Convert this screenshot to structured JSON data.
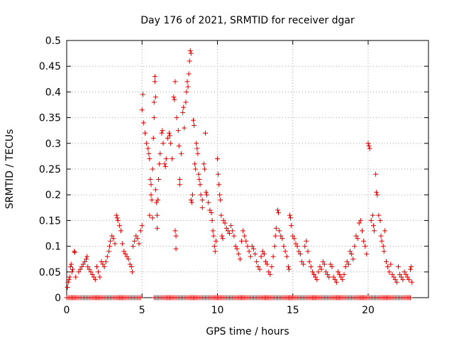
{
  "chart_data": {
    "type": "scatter",
    "title": "Day 176 of 2021, SRMTID for receiver dgar",
    "xlabel": "GPS time / hours",
    "ylabel": "SRMTID / TECUs",
    "xlim": [
      0,
      24
    ],
    "ylim": [
      0,
      0.5
    ],
    "xticks": [
      0,
      5,
      10,
      15,
      20
    ],
    "yticks": [
      0,
      0.05,
      0.1,
      0.15,
      0.2,
      0.25,
      0.3,
      0.35,
      0.4,
      0.45,
      0.5
    ],
    "xtick_labels": [
      "0",
      "5",
      "10",
      "15",
      "20"
    ],
    "ytick_labels": [
      "0",
      "0.05",
      "0.1",
      "0.15",
      "0.2",
      "0.25",
      "0.3",
      "0.35",
      "0.4",
      "0.45",
      "0.5"
    ],
    "grid": true,
    "marker": "+",
    "color": "#dd0000",
    "series": [
      {
        "name": "SRMTID",
        "points": [
          [
            0.0,
            0.0
          ],
          [
            0.05,
            0.02
          ],
          [
            0.1,
            0.03
          ],
          [
            0.15,
            0.035
          ],
          [
            0.2,
            0.04
          ],
          [
            0.25,
            0.06
          ],
          [
            0.3,
            0.065
          ],
          [
            0.35,
            0.05
          ],
          [
            0.4,
            0.055
          ],
          [
            0.5,
            0.09
          ],
          [
            0.55,
            0.088
          ],
          [
            0.6,
            0.04
          ],
          [
            0.8,
            0.05
          ],
          [
            0.9,
            0.055
          ],
          [
            1.0,
            0.06
          ],
          [
            1.1,
            0.065
          ],
          [
            1.2,
            0.07
          ],
          [
            1.3,
            0.075
          ],
          [
            1.35,
            0.08
          ],
          [
            1.4,
            0.06
          ],
          [
            1.5,
            0.055
          ],
          [
            1.6,
            0.05
          ],
          [
            1.7,
            0.045
          ],
          [
            1.8,
            0.04
          ],
          [
            1.9,
            0.035
          ],
          [
            2.0,
            0.06
          ],
          [
            2.1,
            0.05
          ],
          [
            2.2,
            0.04
          ],
          [
            2.3,
            0.07
          ],
          [
            2.4,
            0.065
          ],
          [
            2.5,
            0.06
          ],
          [
            2.6,
            0.07
          ],
          [
            2.7,
            0.08
          ],
          [
            2.8,
            0.09
          ],
          [
            2.85,
            0.1
          ],
          [
            2.9,
            0.11
          ],
          [
            3.0,
            0.12
          ],
          [
            3.1,
            0.115
          ],
          [
            3.2,
            0.105
          ],
          [
            3.3,
            0.16
          ],
          [
            3.35,
            0.155
          ],
          [
            3.4,
            0.15
          ],
          [
            3.5,
            0.14
          ],
          [
            3.6,
            0.13
          ],
          [
            3.7,
            0.105
          ],
          [
            3.8,
            0.09
          ],
          [
            3.9,
            0.085
          ],
          [
            4.0,
            0.08
          ],
          [
            4.1,
            0.075
          ],
          [
            4.2,
            0.065
          ],
          [
            4.3,
            0.06
          ],
          [
            4.35,
            0.05
          ],
          [
            4.4,
            0.1
          ],
          [
            4.5,
            0.11
          ],
          [
            4.6,
            0.12
          ],
          [
            4.7,
            0.115
          ],
          [
            4.8,
            0.105
          ],
          [
            4.9,
            0.13
          ],
          [
            5.0,
            0.14
          ],
          [
            5.0,
            0.365
          ],
          [
            5.05,
            0.395
          ],
          [
            5.1,
            0.34
          ],
          [
            5.2,
            0.32
          ],
          [
            5.3,
            0.3
          ],
          [
            5.4,
            0.29
          ],
          [
            5.45,
            0.28
          ],
          [
            5.5,
            0.27
          ],
          [
            5.5,
            0.16
          ],
          [
            5.55,
            0.23
          ],
          [
            5.6,
            0.22
          ],
          [
            5.6,
            0.2
          ],
          [
            5.65,
            0.19
          ],
          [
            5.7,
            0.155
          ],
          [
            5.7,
            0.25
          ],
          [
            5.75,
            0.31
          ],
          [
            5.8,
            0.35
          ],
          [
            5.8,
            0.38
          ],
          [
            5.85,
            0.43
          ],
          [
            5.85,
            0.42
          ],
          [
            5.9,
            0.39
          ],
          [
            5.9,
            0.21
          ],
          [
            5.95,
            0.185
          ],
          [
            6.0,
            0.16
          ],
          [
            6.0,
            0.135
          ],
          [
            6.05,
            0.19
          ],
          [
            6.1,
            0.23
          ],
          [
            6.15,
            0.26
          ],
          [
            6.2,
            0.28
          ],
          [
            6.3,
            0.32
          ],
          [
            6.35,
            0.325
          ],
          [
            6.4,
            0.3
          ],
          [
            6.5,
            0.26
          ],
          [
            6.55,
            0.255
          ],
          [
            6.6,
            0.27
          ],
          [
            6.7,
            0.31
          ],
          [
            6.8,
            0.32
          ],
          [
            6.85,
            0.315
          ],
          [
            6.9,
            0.3
          ],
          [
            7.0,
            0.27
          ],
          [
            7.1,
            0.39
          ],
          [
            7.15,
            0.385
          ],
          [
            7.2,
            0.42
          ],
          [
            7.2,
            0.13
          ],
          [
            7.25,
            0.12
          ],
          [
            7.25,
            0.095
          ],
          [
            7.3,
            0.35
          ],
          [
            7.4,
            0.325
          ],
          [
            7.45,
            0.295
          ],
          [
            7.5,
            0.23
          ],
          [
            7.5,
            0.22
          ],
          [
            7.6,
            0.28
          ],
          [
            7.7,
            0.36
          ],
          [
            7.75,
            0.37
          ],
          [
            7.8,
            0.33
          ],
          [
            7.9,
            0.38
          ],
          [
            7.95,
            0.4
          ],
          [
            8.0,
            0.42
          ],
          [
            8.05,
            0.41
          ],
          [
            8.1,
            0.435
          ],
          [
            8.15,
            0.46
          ],
          [
            8.2,
            0.48
          ],
          [
            8.25,
            0.475
          ],
          [
            8.25,
            0.19
          ],
          [
            8.3,
            0.185
          ],
          [
            8.35,
            0.2
          ],
          [
            8.4,
            0.345
          ],
          [
            8.45,
            0.335
          ],
          [
            8.5,
            0.26
          ],
          [
            8.55,
            0.25
          ],
          [
            8.6,
            0.3
          ],
          [
            8.65,
            0.29
          ],
          [
            8.7,
            0.28
          ],
          [
            8.75,
            0.24
          ],
          [
            8.8,
            0.23
          ],
          [
            8.85,
            0.22
          ],
          [
            8.9,
            0.2
          ],
          [
            9.0,
            0.19
          ],
          [
            9.0,
            0.175
          ],
          [
            9.1,
            0.26
          ],
          [
            9.15,
            0.25
          ],
          [
            9.2,
            0.32
          ],
          [
            9.25,
            0.205
          ],
          [
            9.3,
            0.2
          ],
          [
            9.4,
            0.185
          ],
          [
            9.5,
            0.17
          ],
          [
            9.6,
            0.165
          ],
          [
            9.65,
            0.15
          ],
          [
            9.7,
            0.13
          ],
          [
            9.75,
            0.12
          ],
          [
            9.8,
            0.1
          ],
          [
            9.85,
            0.09
          ],
          [
            9.9,
            0.11
          ],
          [
            10.0,
            0.27
          ],
          [
            10.05,
            0.24
          ],
          [
            10.1,
            0.22
          ],
          [
            10.15,
            0.2
          ],
          [
            10.2,
            0.19
          ],
          [
            10.25,
            0.16
          ],
          [
            10.3,
            0.12
          ],
          [
            10.35,
            0.115
          ],
          [
            10.4,
            0.15
          ],
          [
            10.5,
            0.145
          ],
          [
            10.6,
            0.135
          ],
          [
            10.7,
            0.13
          ],
          [
            10.8,
            0.125
          ],
          [
            10.9,
            0.14
          ],
          [
            11.0,
            0.13
          ],
          [
            11.1,
            0.12
          ],
          [
            11.2,
            0.1
          ],
          [
            11.3,
            0.095
          ],
          [
            11.4,
            0.085
          ],
          [
            11.5,
            0.075
          ],
          [
            11.6,
            0.11
          ],
          [
            11.7,
            0.13
          ],
          [
            11.8,
            0.12
          ],
          [
            11.9,
            0.11
          ],
          [
            12.0,
            0.1
          ],
          [
            12.1,
            0.09
          ],
          [
            12.2,
            0.08
          ],
          [
            12.3,
            0.1
          ],
          [
            12.4,
            0.095
          ],
          [
            12.5,
            0.085
          ],
          [
            12.6,
            0.07
          ],
          [
            12.7,
            0.06
          ],
          [
            12.8,
            0.055
          ],
          [
            12.9,
            0.08
          ],
          [
            13.0,
            0.09
          ],
          [
            13.1,
            0.085
          ],
          [
            13.2,
            0.07
          ],
          [
            13.3,
            0.065
          ],
          [
            13.4,
            0.05
          ],
          [
            13.5,
            0.045
          ],
          [
            13.6,
            0.06
          ],
          [
            13.7,
            0.08
          ],
          [
            13.8,
            0.1
          ],
          [
            13.85,
            0.12
          ],
          [
            13.9,
            0.135
          ],
          [
            14.0,
            0.17
          ],
          [
            14.05,
            0.165
          ],
          [
            14.1,
            0.13
          ],
          [
            14.2,
            0.12
          ],
          [
            14.3,
            0.115
          ],
          [
            14.4,
            0.1
          ],
          [
            14.5,
            0.09
          ],
          [
            14.6,
            0.08
          ],
          [
            14.7,
            0.06
          ],
          [
            14.75,
            0.055
          ],
          [
            14.8,
            0.16
          ],
          [
            14.85,
            0.155
          ],
          [
            14.9,
            0.14
          ],
          [
            15.0,
            0.12
          ],
          [
            15.1,
            0.115
          ],
          [
            15.2,
            0.105
          ],
          [
            15.3,
            0.1
          ],
          [
            15.4,
            0.09
          ],
          [
            15.5,
            0.085
          ],
          [
            15.6,
            0.07
          ],
          [
            15.7,
            0.065
          ],
          [
            15.8,
            0.1
          ],
          [
            15.9,
            0.11
          ],
          [
            16.0,
            0.09
          ],
          [
            16.1,
            0.07
          ],
          [
            16.2,
            0.06
          ],
          [
            16.3,
            0.05
          ],
          [
            16.4,
            0.045
          ],
          [
            16.5,
            0.04
          ],
          [
            16.6,
            0.035
          ],
          [
            16.7,
            0.05
          ],
          [
            16.8,
            0.06
          ],
          [
            16.9,
            0.055
          ],
          [
            17.0,
            0.07
          ],
          [
            17.1,
            0.065
          ],
          [
            17.2,
            0.05
          ],
          [
            17.3,
            0.045
          ],
          [
            17.4,
            0.04
          ],
          [
            17.5,
            0.065
          ],
          [
            17.6,
            0.06
          ],
          [
            17.7,
            0.04
          ],
          [
            17.8,
            0.035
          ],
          [
            17.9,
            0.03
          ],
          [
            18.0,
            0.05
          ],
          [
            18.1,
            0.045
          ],
          [
            18.2,
            0.04
          ],
          [
            18.3,
            0.035
          ],
          [
            18.4,
            0.045
          ],
          [
            18.5,
            0.06
          ],
          [
            18.6,
            0.07
          ],
          [
            18.7,
            0.065
          ],
          [
            18.8,
            0.09
          ],
          [
            18.9,
            0.085
          ],
          [
            19.0,
            0.075
          ],
          [
            19.1,
            0.1
          ],
          [
            19.2,
            0.12
          ],
          [
            19.3,
            0.115
          ],
          [
            19.4,
            0.145
          ],
          [
            19.5,
            0.15
          ],
          [
            19.6,
            0.13
          ],
          [
            19.7,
            0.11
          ],
          [
            19.8,
            0.1
          ],
          [
            19.9,
            0.085
          ],
          [
            20.0,
            0.3
          ],
          [
            20.05,
            0.295
          ],
          [
            20.1,
            0.29
          ],
          [
            20.2,
            0.15
          ],
          [
            20.3,
            0.16
          ],
          [
            20.35,
            0.14
          ],
          [
            20.4,
            0.13
          ],
          [
            20.5,
            0.24
          ],
          [
            20.55,
            0.205
          ],
          [
            20.6,
            0.2
          ],
          [
            20.7,
            0.16
          ],
          [
            20.8,
            0.15
          ],
          [
            20.85,
            0.12
          ],
          [
            20.9,
            0.11
          ],
          [
            21.0,
            0.1
          ],
          [
            21.05,
            0.09
          ],
          [
            21.1,
            0.13
          ],
          [
            21.2,
            0.07
          ],
          [
            21.3,
            0.06
          ],
          [
            21.4,
            0.05
          ],
          [
            21.5,
            0.065
          ],
          [
            21.6,
            0.045
          ],
          [
            21.7,
            0.04
          ],
          [
            21.8,
            0.035
          ],
          [
            21.9,
            0.03
          ],
          [
            22.0,
            0.06
          ],
          [
            22.1,
            0.045
          ],
          [
            22.2,
            0.04
          ],
          [
            22.3,
            0.035
          ],
          [
            22.4,
            0.05
          ],
          [
            22.5,
            0.045
          ],
          [
            22.6,
            0.04
          ],
          [
            22.7,
            0.035
          ],
          [
            22.8,
            0.055
          ],
          [
            22.85,
            0.06
          ],
          [
            22.9,
            0.03
          ]
        ]
      }
    ],
    "zero_band_xranges": [
      [
        0.0,
        4.95
      ],
      [
        5.8,
        22.85
      ]
    ]
  }
}
